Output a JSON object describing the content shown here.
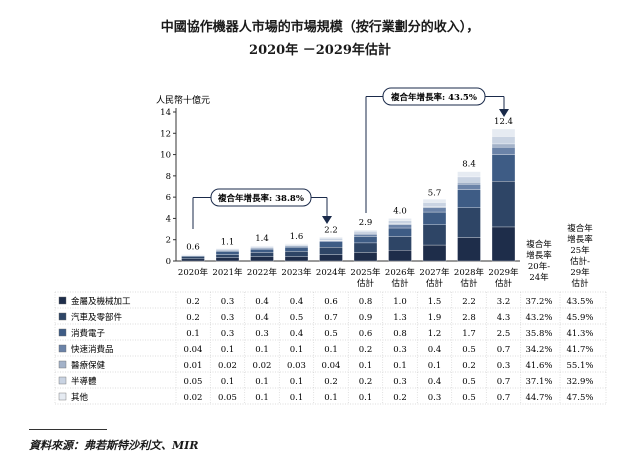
{
  "title_line1": "中國協作機器人市場的市場規模（按行業劃分的收入），",
  "title_line2": "2020年 －2029年估計",
  "source": "資料來源：弗若斯特沙利文、MIR",
  "annotations": {
    "cagr_hist": "複合年增長率: 38.8%",
    "cagr_fcst": "複合年增長率: 43.5%"
  },
  "table_headers": {
    "cagr_hist": [
      "複合年",
      "增長率",
      "20年-",
      "24年"
    ],
    "cagr_fcst": [
      "複合年",
      "增長率",
      "25年",
      "估計-",
      "29年",
      "估計"
    ]
  },
  "colors": {
    "series": [
      "#1e2d4a",
      "#2e4566",
      "#3e5c85",
      "#6b83a8",
      "#a3b2c9",
      "#c9d3e2",
      "#e6ebf2"
    ],
    "arrow": "#1a2a4a"
  },
  "chart_data": {
    "type": "bar",
    "stacked": true,
    "ylabel": "人民幣十億元",
    "ylim": [
      0,
      14
    ],
    "yticks": [
      "0",
      "2",
      "4",
      "6",
      "8",
      "10",
      "12",
      "14"
    ],
    "categories": [
      "2020年",
      "2021年",
      "2022年",
      "2023年",
      "2024年",
      "2025年 估計",
      "2026年 估計",
      "2027年 估計",
      "2028年 估計",
      "2029年 估計"
    ],
    "totals": [
      "0.6",
      "1.1",
      "1.4",
      "1.6",
      "2.2",
      "2.9",
      "4.0",
      "5.7",
      "8.4",
      "12.4"
    ],
    "series": [
      {
        "name": "金屬及機械加工",
        "values": [
          "0.2",
          "0.3",
          "0.4",
          "0.4",
          "0.6",
          "0.8",
          "1.0",
          "1.5",
          "2.2",
          "3.2"
        ],
        "cagr_hist": "37.2%",
        "cagr_fcst": "43.5%"
      },
      {
        "name": "汽車及零部件",
        "values": [
          "0.2",
          "0.3",
          "0.4",
          "0.5",
          "0.7",
          "0.9",
          "1.3",
          "1.9",
          "2.8",
          "4.3"
        ],
        "cagr_hist": "43.2%",
        "cagr_fcst": "45.9%"
      },
      {
        "name": "消費電子",
        "values": [
          "0.1",
          "0.3",
          "0.3",
          "0.4",
          "0.5",
          "0.6",
          "0.8",
          "1.2",
          "1.7",
          "2.5"
        ],
        "cagr_hist": "35.8%",
        "cagr_fcst": "41.3%"
      },
      {
        "name": "快速消費品",
        "values": [
          "0.04",
          "0.1",
          "0.1",
          "0.1",
          "0.1",
          "0.2",
          "0.3",
          "0.4",
          "0.5",
          "0.7"
        ],
        "cagr_hist": "34.2%",
        "cagr_fcst": "41.7%"
      },
      {
        "name": "醫療保健",
        "values": [
          "0.01",
          "0.02",
          "0.02",
          "0.03",
          "0.04",
          "0.1",
          "0.1",
          "0.1",
          "0.2",
          "0.3"
        ],
        "cagr_hist": "41.6%",
        "cagr_fcst": "55.1%"
      },
      {
        "name": "半導體",
        "values": [
          "0.05",
          "0.1",
          "0.1",
          "0.1",
          "0.2",
          "0.2",
          "0.3",
          "0.4",
          "0.5",
          "0.7"
        ],
        "cagr_hist": "37.1%",
        "cagr_fcst": "32.9%"
      },
      {
        "name": "其他",
        "values": [
          "0.02",
          "0.05",
          "0.1",
          "0.1",
          "0.1",
          "0.1",
          "0.2",
          "0.3",
          "0.5",
          "0.7"
        ],
        "cagr_hist": "44.7%",
        "cagr_fcst": "47.5%"
      }
    ]
  }
}
